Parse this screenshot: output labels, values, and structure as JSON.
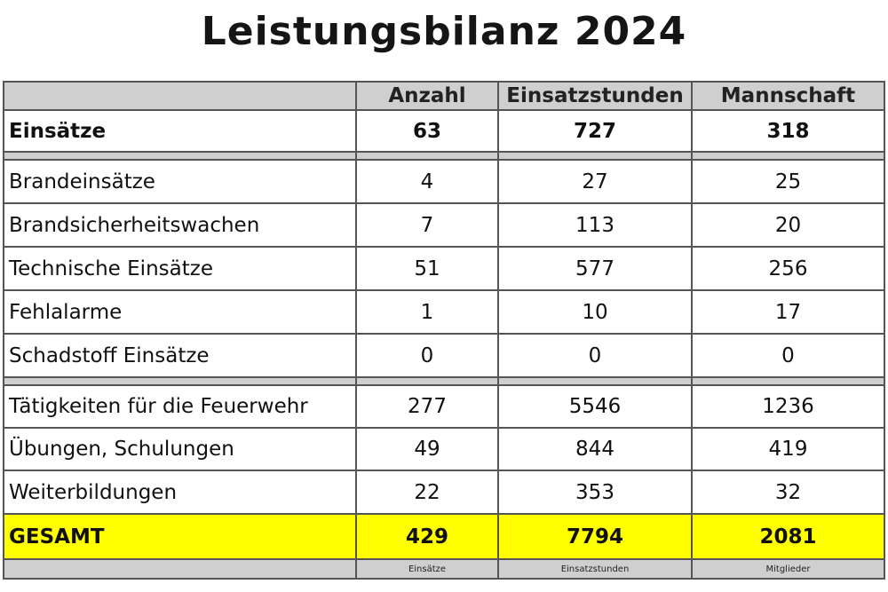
{
  "title": "Leistungsbilanz 2024",
  "colors": {
    "header_bg": "#cfcfcf",
    "separator_bg": "#cfcfcf",
    "total_bg": "#ffff00",
    "border": "#555555"
  },
  "columns": [
    "",
    "Anzahl",
    "Einsatzstunden",
    "Mannschaft"
  ],
  "summary_row": {
    "label": "Einsätze",
    "anzahl": "63",
    "einsatzstunden": "727",
    "mannschaft": "318"
  },
  "einsatz_rows": [
    {
      "label": "Brandeinsätze",
      "anzahl": "4",
      "einsatzstunden": "27",
      "mannschaft": "25"
    },
    {
      "label": "Brandsicherheitswachen",
      "anzahl": "7",
      "einsatzstunden": "113",
      "mannschaft": "20"
    },
    {
      "label": "Technische Einsätze",
      "anzahl": "51",
      "einsatzstunden": "577",
      "mannschaft": "256"
    },
    {
      "label": "Fehlalarme",
      "anzahl": "1",
      "einsatzstunden": "10",
      "mannschaft": "17"
    },
    {
      "label": "Schadstoff Einsätze",
      "anzahl": "0",
      "einsatzstunden": "0",
      "mannschaft": "0"
    }
  ],
  "other_rows": [
    {
      "label": "Tätigkeiten für die Feuerwehr",
      "anzahl": "277",
      "einsatzstunden": "5546",
      "mannschaft": "1236"
    },
    {
      "label": "Übungen, Schulungen",
      "anzahl": "49",
      "einsatzstunden": "844",
      "mannschaft": "419"
    },
    {
      "label": "Weiterbildungen",
      "anzahl": "22",
      "einsatzstunden": "353",
      "mannschaft": "32"
    }
  ],
  "total_row": {
    "label": "GESAMT",
    "anzahl": "429",
    "einsatzstunden": "7794",
    "mannschaft": "2081"
  },
  "footer": {
    "anzahl": "Einsätze",
    "einsatzstunden": "Einsatzstunden",
    "mannschaft": "Mitglieder"
  }
}
